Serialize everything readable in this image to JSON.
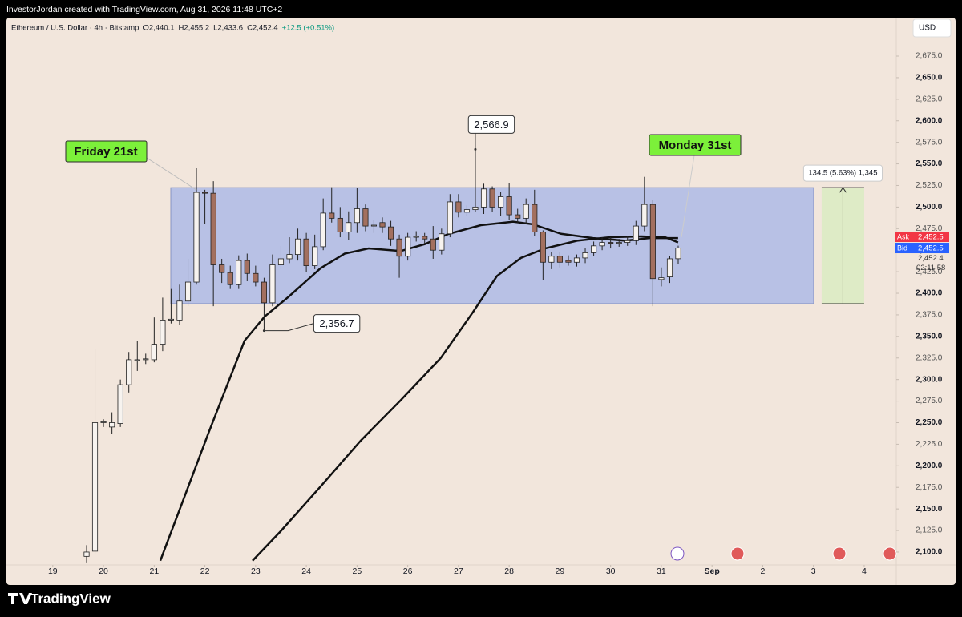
{
  "header": "InvestorJordan created with TradingView.com, Aug 31, 2026 11:48 UTC+2",
  "footer": "TradingView",
  "chart_data": {
    "type": "candlestick",
    "legend_items": [
      "Ethereum / U.S. Dollar · 4h · Bitstamp",
      "O2,440.1",
      "H2,455.2",
      "L2,433.6",
      "C2,452.4",
      "+12.5 (+0.51%)"
    ],
    "currency": "USD",
    "up_color": "#f7f3ef",
    "down_color": "#a3705f",
    "x": [
      19.667,
      19.833,
      20,
      20.167,
      20.333,
      20.5,
      20.667,
      20.833,
      21,
      21.167,
      21.333,
      21.5,
      21.667,
      21.833,
      22,
      22.167,
      22.333,
      22.5,
      22.667,
      22.833,
      23,
      23.167,
      23.333,
      23.5,
      23.667,
      23.833,
      24,
      24.167,
      24.333,
      24.5,
      24.667,
      24.833,
      25,
      25.167,
      25.333,
      25.5,
      25.667,
      25.833,
      26,
      26.167,
      26.333,
      26.5,
      26.667,
      26.833,
      27,
      27.167,
      27.333,
      27.5,
      27.667,
      27.833,
      28,
      28.167,
      28.333,
      28.5,
      28.667,
      28.833,
      29,
      29.167,
      29.333,
      29.5,
      29.667,
      29.833,
      30,
      30.167,
      30.333,
      30.5,
      30.667,
      30.833,
      31,
      31.167,
      31.333
    ],
    "open": [
      2095,
      2101,
      2250,
      2245,
      2249,
      2294,
      2322,
      2323,
      2323,
      2341,
      2369,
      2369,
      2391,
      2413,
      2517,
      2516,
      2433,
      2424,
      2410,
      2438,
      2423,
      2413,
      2389,
      2433,
      2440,
      2445,
      2463,
      2432,
      2454,
      2493,
      2487,
      2471,
      2482,
      2498,
      2478,
      2482,
      2477,
      2463,
      2443,
      2465,
      2466,
      2463,
      2450,
      2469,
      2506,
      2494,
      2497,
      2500,
      2521,
      2500,
      2512,
      2491,
      2487,
      2503,
      2471,
      2436,
      2443,
      2438,
      2436,
      2441,
      2447,
      2455,
      2459,
      2458,
      2459,
      2461,
      2478,
      2503,
      2416,
      2419,
      2440.1
    ],
    "high": [
      2108,
      2336,
      2254,
      2262,
      2300,
      2332,
      2345,
      2330,
      2372,
      2395,
      2405,
      2410,
      2440,
      2545,
      2520,
      2530,
      2440,
      2432,
      2444,
      2446,
      2432,
      2418,
      2445,
      2455,
      2465,
      2475,
      2470,
      2468,
      2510,
      2523,
      2500,
      2495,
      2522,
      2503,
      2485,
      2488,
      2484,
      2468,
      2470,
      2472,
      2470,
      2478,
      2475,
      2515,
      2515,
      2502,
      2566.9,
      2527,
      2524,
      2518,
      2528,
      2498,
      2510,
      2520,
      2473,
      2448,
      2448,
      2444,
      2445,
      2452,
      2460,
      2465,
      2465,
      2463,
      2466,
      2484,
      2535,
      2508,
      2430,
      2443,
      2455.2
    ],
    "low": [
      2088,
      2098,
      2245,
      2237,
      2245,
      2285,
      2310,
      2318,
      2320,
      2333,
      2365,
      2363,
      2385,
      2410,
      2480,
      2385,
      2412,
      2405,
      2405,
      2414,
      2408,
      2356.7,
      2385,
      2428,
      2435,
      2438,
      2425,
      2428,
      2450,
      2482,
      2465,
      2462,
      2470,
      2472,
      2470,
      2470,
      2455,
      2418,
      2438,
      2460,
      2458,
      2440,
      2445,
      2465,
      2488,
      2490,
      2494,
      2492,
      2494,
      2490,
      2485,
      2482,
      2480,
      2466,
      2415,
      2428,
      2430,
      2432,
      2431,
      2435,
      2443,
      2450,
      2452,
      2454,
      2455,
      2456,
      2472,
      2385,
      2408,
      2412,
      2433.6
    ],
    "close": [
      2100,
      2250,
      2251,
      2250,
      2294,
      2323,
      2323,
      2324,
      2341,
      2369,
      2370,
      2391,
      2413,
      2517,
      2516,
      2433,
      2424,
      2410,
      2438,
      2423,
      2413,
      2389,
      2433,
      2440,
      2445,
      2463,
      2432,
      2454,
      2493,
      2487,
      2471,
      2482,
      2498,
      2478,
      2479,
      2477,
      2463,
      2443,
      2465,
      2466,
      2463,
      2450,
      2469,
      2506,
      2494,
      2497,
      2500,
      2521,
      2500,
      2512,
      2491,
      2487,
      2503,
      2471,
      2436,
      2443,
      2436,
      2436,
      2441,
      2447,
      2455,
      2459,
      2458,
      2459,
      2461,
      2478,
      2503,
      2417,
      2418,
      2440,
      2452.4
    ],
    "lines": [
      {
        "color": "#111111",
        "x": [
          21.121,
          21.596,
          22.07,
          22.781,
          23.177,
          23.651,
          24.28,
          24.755,
          25.229,
          25.861,
          26.335,
          26.81,
          27.442,
          28.074,
          28.47,
          29.023,
          29.655,
          30.288,
          30.762,
          31.331
        ],
        "values": [
          2090,
          2164,
          2238,
          2345,
          2373,
          2396,
          2429,
          2446,
          2452,
          2449,
          2457,
          2469,
          2479,
          2483,
          2480,
          2469,
          2464,
          2461,
          2464,
          2464
        ]
      },
      {
        "color": "#111111",
        "x": [
          22.939,
          23.492,
          24.28,
          25.07,
          25.861,
          26.651,
          27.284,
          27.758,
          28.232,
          28.706,
          29.339,
          29.971,
          30.603,
          31.077,
          31.331
        ],
        "values": [
          2090,
          2124,
          2176,
          2229,
          2276,
          2325,
          2378,
          2420,
          2441,
          2452,
          2461,
          2465,
          2466,
          2465,
          2459
        ]
      }
    ],
    "range_box": {
      "x0": 21.327,
      "x1": 34.004,
      "top": 2522.5,
      "bottom": 2388.0,
      "color": "#9fb0e8"
    },
    "measure": {
      "x0": 34.162,
      "x1": 35.0,
      "top": 2522.5,
      "bottom": 2388.0,
      "label": "134.5 (5.63%) 1,345",
      "color": "#d8ecc0"
    },
    "annotations": [
      {
        "x": 27.333,
        "value": 2566.9,
        "label": "2,566.9"
      },
      {
        "x": 23.167,
        "value": 2356.7,
        "label": "2,356.7"
      }
    ],
    "callouts": [
      "Friday 21st",
      "Monday 31st"
    ],
    "price_tags": {
      "ask_text": "Ask",
      "ask": {
        "value": 2452.5,
        "label": "2,452.5"
      },
      "bid_text": "Bid",
      "bid": {
        "value": 2452.5,
        "label": "2,452.5"
      },
      "last": {
        "value": 2452.4,
        "label": "2,452.4"
      },
      "countdown": "02:11:58"
    },
    "xlim": [
      18.086,
      35.633
    ],
    "xticks": [
      19,
      20,
      21,
      22,
      23,
      24,
      25,
      26,
      27,
      28,
      29,
      30,
      31,
      {
        "value": 32,
        "label": "Sep"
      },
      {
        "value": 33,
        "label": "2"
      },
      {
        "value": 34,
        "label": "3"
      },
      {
        "value": 35,
        "label": "4"
      }
    ],
    "ylim": [
      2085.1,
      2719.6
    ],
    "yticks": [
      {
        "value": 2100,
        "label": "2,100.0"
      },
      {
        "value": 2125,
        "label": "2,125.0"
      },
      {
        "value": 2150,
        "label": "2,150.0"
      },
      {
        "value": 2175,
        "label": "2,175.0"
      },
      {
        "value": 2200,
        "label": "2,200.0"
      },
      {
        "value": 2225,
        "label": "2,225.0"
      },
      {
        "value": 2250,
        "label": "2,250.0"
      },
      {
        "value": 2275,
        "label": "2,275.0"
      },
      {
        "value": 2300,
        "label": "2,300.0"
      },
      {
        "value": 2325,
        "label": "2,325.0"
      },
      {
        "value": 2350,
        "label": "2,350.0"
      },
      {
        "value": 2375,
        "label": "2,375.0"
      },
      {
        "value": 2400,
        "label": "2,400.0"
      },
      {
        "value": 2425,
        "label": "2,425.0"
      },
      {
        "value": 2450,
        "label": "2,450.0"
      },
      {
        "value": 2475,
        "label": "2,475.0"
      },
      {
        "value": 2500,
        "label": "2,500.0"
      },
      {
        "value": 2525,
        "label": "2,525.0"
      },
      {
        "value": 2550,
        "label": "2,550.0"
      },
      {
        "value": 2575,
        "label": "2,575.0"
      },
      {
        "value": 2600,
        "label": "2,600.0"
      },
      {
        "value": 2625,
        "label": "2,625.0"
      },
      {
        "value": 2650,
        "label": "2,650.0"
      },
      {
        "value": 2675,
        "label": "2,675.0"
      }
    ],
    "grid": false
  }
}
